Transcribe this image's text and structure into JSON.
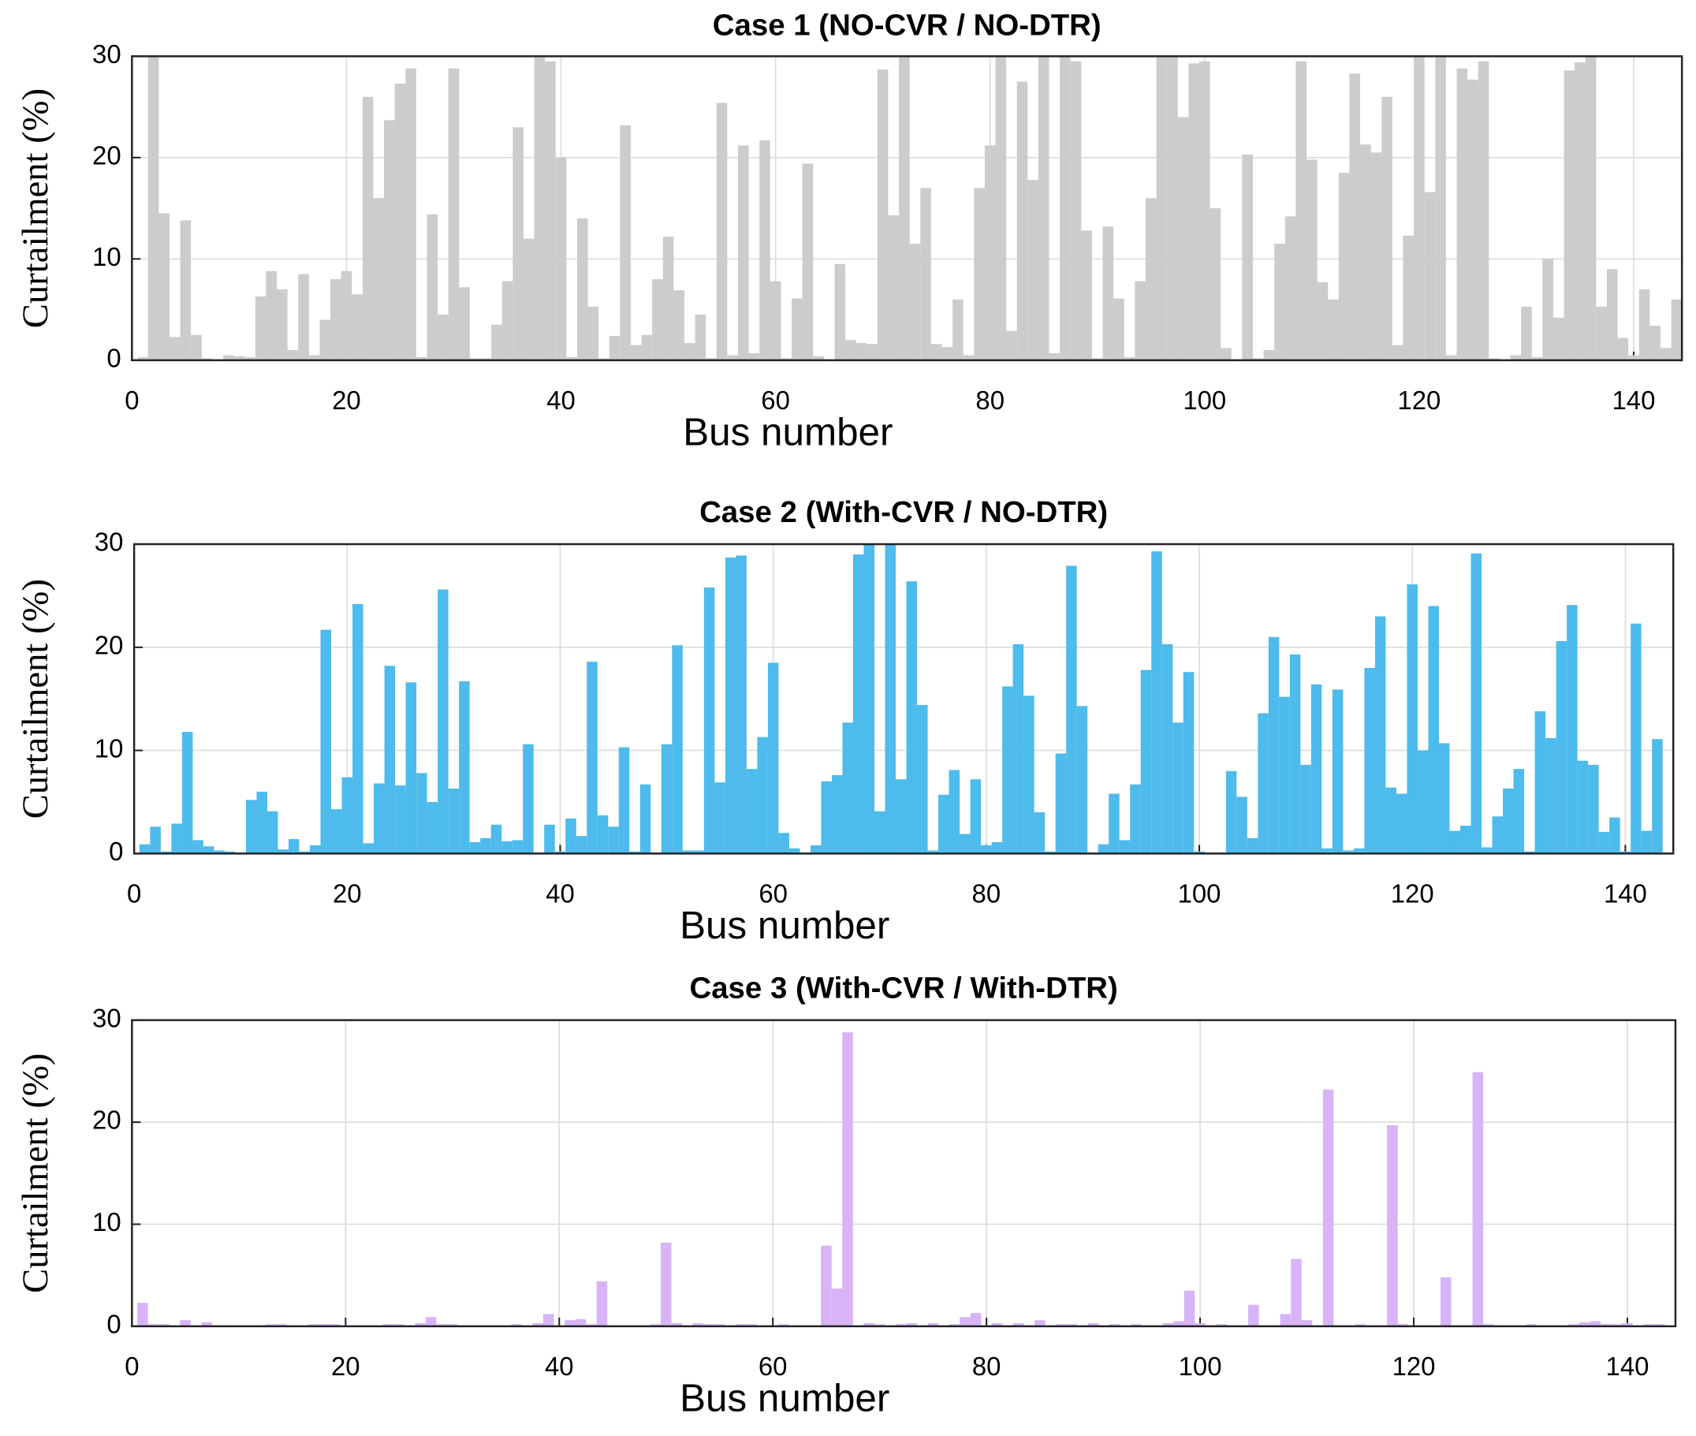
{
  "chart_data": [
    {
      "type": "bar",
      "title": "Case 1 (NO-CVR / NO-DTR)",
      "xlabel": "Bus number",
      "ylabel": "Curtailment (%)",
      "color": "#cccccc",
      "grid": true,
      "xlim": [
        0,
        144.5
      ],
      "ylim": [
        0,
        30
      ],
      "xticks": [
        0,
        20,
        40,
        60,
        80,
        100,
        120,
        140
      ],
      "yticks": [
        0,
        10,
        20,
        30
      ],
      "x": [
        1,
        2,
        3,
        4,
        5,
        6,
        7,
        8,
        9,
        10,
        11,
        12,
        13,
        14,
        15,
        16,
        17,
        18,
        19,
        20,
        21,
        22,
        23,
        24,
        25,
        26,
        27,
        28,
        29,
        30,
        31,
        32,
        33,
        34,
        35,
        36,
        37,
        38,
        39,
        40,
        41,
        42,
        43,
        44,
        45,
        46,
        47,
        48,
        49,
        50,
        51,
        52,
        53,
        54,
        55,
        56,
        57,
        58,
        59,
        60,
        61,
        62,
        63,
        64,
        65,
        66,
        67,
        68,
        69,
        70,
        71,
        72,
        73,
        74,
        75,
        76,
        77,
        78,
        79,
        80,
        81,
        82,
        83,
        84,
        85,
        86,
        87,
        88,
        89,
        90,
        91,
        92,
        93,
        94,
        95,
        96,
        97,
        98,
        99,
        100,
        101,
        102,
        103,
        104,
        105,
        106,
        107,
        108,
        109,
        110,
        111,
        112,
        113,
        114,
        115,
        116,
        117,
        118,
        119,
        120,
        121,
        122,
        123,
        124,
        125,
        126,
        127,
        128,
        129,
        130,
        131,
        132,
        133,
        134,
        135,
        136,
        137,
        138,
        139,
        140,
        141,
        142,
        143,
        144
      ],
      "values": [
        0.3,
        30,
        14.5,
        2.3,
        13.8,
        2.5,
        0.2,
        0.1,
        0.5,
        0.4,
        0.3,
        6.3,
        8.8,
        7,
        1,
        8.5,
        0.5,
        4,
        8,
        8.8,
        6.5,
        26,
        16,
        23.7,
        27.3,
        28.8,
        0.3,
        14.4,
        4.5,
        28.8,
        7.2,
        0.2,
        0.2,
        3.5,
        7.8,
        23,
        12,
        29.9,
        29.5,
        20,
        0.3,
        14,
        5.3,
        0.2,
        2.4,
        23.2,
        1.5,
        2.5,
        8,
        12.2,
        6.9,
        1.7,
        4.5,
        0.2,
        25.4,
        0.5,
        21.2,
        0.7,
        21.7,
        7.8,
        0.2,
        6.1,
        19.4,
        0.4,
        0.1,
        9.5,
        2,
        1.7,
        1.6,
        28.7,
        14.3,
        30,
        11.5,
        17,
        1.6,
        1.3,
        6,
        0.5,
        17,
        21.2,
        30,
        2.9,
        27.5,
        17.8,
        30,
        0.7,
        30,
        29.5,
        12.8,
        0.2,
        13.2,
        6.1,
        0.3,
        7.8,
        16,
        30,
        30,
        24,
        29.3,
        29.5,
        15,
        1.2,
        0.1,
        20.3,
        0.2,
        1,
        11.5,
        14.2,
        29.5,
        19.8,
        7.7,
        6,
        18.5,
        28.3,
        21.3,
        20.5,
        26,
        1.5,
        12.3,
        30,
        16.6,
        30,
        0.5,
        28.8,
        27.7,
        29.5,
        0.2,
        0.1,
        0.5,
        5.3,
        0.3,
        10,
        4.2,
        28.6,
        29.4,
        30,
        5.3,
        9,
        2.2,
        0.5,
        7,
        3.4,
        1.2,
        6
      ]
    },
    {
      "type": "bar",
      "title": "Case 2 (With-CVR / NO-DTR)",
      "xlabel": "Bus number",
      "ylabel": "Curtailment (%)",
      "color": "#4dbbeb",
      "grid": true,
      "xlim": [
        0,
        144.5
      ],
      "ylim": [
        0,
        30
      ],
      "xticks": [
        0,
        20,
        40,
        60,
        80,
        100,
        120,
        140
      ],
      "yticks": [
        0,
        10,
        20,
        30
      ],
      "x": [
        1,
        2,
        3,
        4,
        5,
        6,
        7,
        8,
        9,
        10,
        11,
        12,
        13,
        14,
        15,
        16,
        17,
        18,
        19,
        20,
        21,
        22,
        23,
        24,
        25,
        26,
        27,
        28,
        29,
        30,
        31,
        32,
        33,
        34,
        35,
        36,
        37,
        38,
        39,
        40,
        41,
        42,
        43,
        44,
        45,
        46,
        47,
        48,
        49,
        50,
        51,
        52,
        53,
        54,
        55,
        56,
        57,
        58,
        59,
        60,
        61,
        62,
        63,
        64,
        65,
        66,
        67,
        68,
        69,
        70,
        71,
        72,
        73,
        74,
        75,
        76,
        77,
        78,
        79,
        80,
        81,
        82,
        83,
        84,
        85,
        86,
        87,
        88,
        89,
        90,
        91,
        92,
        93,
        94,
        95,
        96,
        97,
        98,
        99,
        100,
        101,
        102,
        103,
        104,
        105,
        106,
        107,
        108,
        109,
        110,
        111,
        112,
        113,
        114,
        115,
        116,
        117,
        118,
        119,
        120,
        121,
        122,
        123,
        124,
        125,
        126,
        127,
        128,
        129,
        130,
        131,
        132,
        133,
        134,
        135,
        136,
        137,
        138,
        139,
        140,
        141,
        142,
        143,
        144
      ],
      "values": [
        0.9,
        2.6,
        0.2,
        2.9,
        11.8,
        1.3,
        0.7,
        0.3,
        0.2,
        0.1,
        5.2,
        6,
        4.1,
        0.4,
        1.4,
        0.2,
        0.8,
        21.7,
        4.3,
        7.4,
        24.2,
        1,
        6.8,
        18.2,
        6.6,
        16.6,
        7.8,
        5,
        25.6,
        6.3,
        16.7,
        1.1,
        1.5,
        2.8,
        1.2,
        1.3,
        10.6,
        0.1,
        2.8,
        0.2,
        3.4,
        1.7,
        18.6,
        3.7,
        2.6,
        10.3,
        0.2,
        6.7,
        0.1,
        10.6,
        20.2,
        0.3,
        0.3,
        25.8,
        6.9,
        28.7,
        28.9,
        8.2,
        11.3,
        18.5,
        2,
        0.5,
        0.1,
        0.8,
        7,
        7.6,
        12.7,
        29,
        30,
        4.1,
        30,
        7.2,
        26.4,
        14.4,
        0.3,
        5.7,
        8.1,
        1.9,
        7.2,
        0.8,
        1.1,
        16.2,
        20.3,
        15.3,
        4,
        0.2,
        9.7,
        27.9,
        14.3,
        0.1,
        0.9,
        5.8,
        1.3,
        6.7,
        17.8,
        29.3,
        20.3,
        12.7,
        17.6,
        0.2,
        0.1,
        0.1,
        8,
        5.5,
        1.5,
        13.6,
        21,
        15.2,
        19.3,
        8.6,
        16.4,
        0.5,
        15.9,
        0.3,
        0.5,
        18,
        23,
        6.4,
        5.8,
        26.1,
        10,
        24,
        10.7,
        2.2,
        2.7,
        29.1,
        0.6,
        3.6,
        6.3,
        8.2,
        0.2,
        13.8,
        11.2,
        20.6,
        24.1,
        9,
        8.6,
        2.1,
        3.5,
        0.2,
        22.3,
        2.2,
        11.1,
        0.1
      ]
    },
    {
      "type": "bar",
      "title": "Case 3 (With-CVR / With-DTR)",
      "xlabel": "Bus number",
      "ylabel": "Curtailment (%)",
      "color": "#d7b4f8",
      "grid": true,
      "xlim": [
        0,
        144.5
      ],
      "ylim": [
        0,
        30
      ],
      "xticks": [
        0,
        20,
        40,
        60,
        80,
        100,
        120,
        140
      ],
      "yticks": [
        0,
        10,
        20,
        30
      ],
      "x": [
        1,
        2,
        3,
        4,
        5,
        6,
        7,
        8,
        9,
        10,
        11,
        12,
        13,
        14,
        15,
        16,
        17,
        18,
        19,
        20,
        21,
        22,
        23,
        24,
        25,
        26,
        27,
        28,
        29,
        30,
        31,
        32,
        33,
        34,
        35,
        36,
        37,
        38,
        39,
        40,
        41,
        42,
        43,
        44,
        45,
        46,
        47,
        48,
        49,
        50,
        51,
        52,
        53,
        54,
        55,
        56,
        57,
        58,
        59,
        60,
        61,
        62,
        63,
        64,
        65,
        66,
        67,
        68,
        69,
        70,
        71,
        72,
        73,
        74,
        75,
        76,
        77,
        78,
        79,
        80,
        81,
        82,
        83,
        84,
        85,
        86,
        87,
        88,
        89,
        90,
        91,
        92,
        93,
        94,
        95,
        96,
        97,
        98,
        99,
        100,
        101,
        102,
        103,
        104,
        105,
        106,
        107,
        108,
        109,
        110,
        111,
        112,
        113,
        114,
        115,
        116,
        117,
        118,
        119,
        120,
        121,
        122,
        123,
        124,
        125,
        126,
        127,
        128,
        129,
        130,
        131,
        132,
        133,
        134,
        135,
        136,
        137,
        138,
        139,
        140,
        141,
        142,
        143,
        144
      ],
      "values": [
        2.3,
        0.2,
        0.2,
        0.1,
        0.6,
        0.1,
        0.4,
        0.1,
        0.1,
        0.1,
        0.1,
        0.1,
        0.2,
        0.2,
        0.1,
        0.1,
        0.2,
        0.2,
        0.2,
        0.1,
        0.1,
        0.1,
        0.1,
        0.2,
        0.2,
        0.1,
        0.3,
        0.9,
        0.2,
        0.2,
        0.1,
        0.1,
        0.1,
        0.1,
        0.1,
        0.2,
        0.1,
        0.3,
        1.2,
        0.1,
        0.6,
        0.7,
        0.2,
        4.4,
        0.1,
        0.1,
        0.1,
        0.1,
        0.2,
        8.2,
        0.3,
        0.1,
        0.3,
        0.2,
        0.2,
        0.1,
        0.2,
        0.2,
        0.1,
        0.1,
        0.2,
        0.1,
        0.1,
        0.1,
        7.9,
        3.7,
        28.8,
        0.1,
        0.3,
        0.2,
        0.1,
        0.2,
        0.3,
        0.1,
        0.3,
        0.1,
        0.2,
        0.9,
        1.3,
        0.1,
        0.3,
        0.1,
        0.3,
        0.1,
        0.6,
        0.1,
        0.2,
        0.2,
        0.1,
        0.3,
        0.1,
        0.2,
        0.1,
        0.2,
        0.1,
        0.1,
        0.3,
        0.5,
        3.5,
        0.3,
        0.1,
        0.2,
        0.1,
        0.1,
        2.1,
        0.1,
        0.1,
        1.2,
        6.6,
        0.6,
        0.1,
        23.2,
        0.1,
        0.1,
        0.2,
        0.1,
        0.1,
        19.7,
        0.2,
        0.1,
        0.1,
        0.1,
        4.8,
        0.1,
        0.1,
        24.9,
        0.2,
        0.1,
        0.1,
        0.1,
        0.2,
        0.1,
        0.1,
        0.1,
        0.2,
        0.4,
        0.5,
        0.2,
        0.2,
        0.3,
        0.1,
        0.2,
        0.2,
        0.1
      ]
    }
  ]
}
